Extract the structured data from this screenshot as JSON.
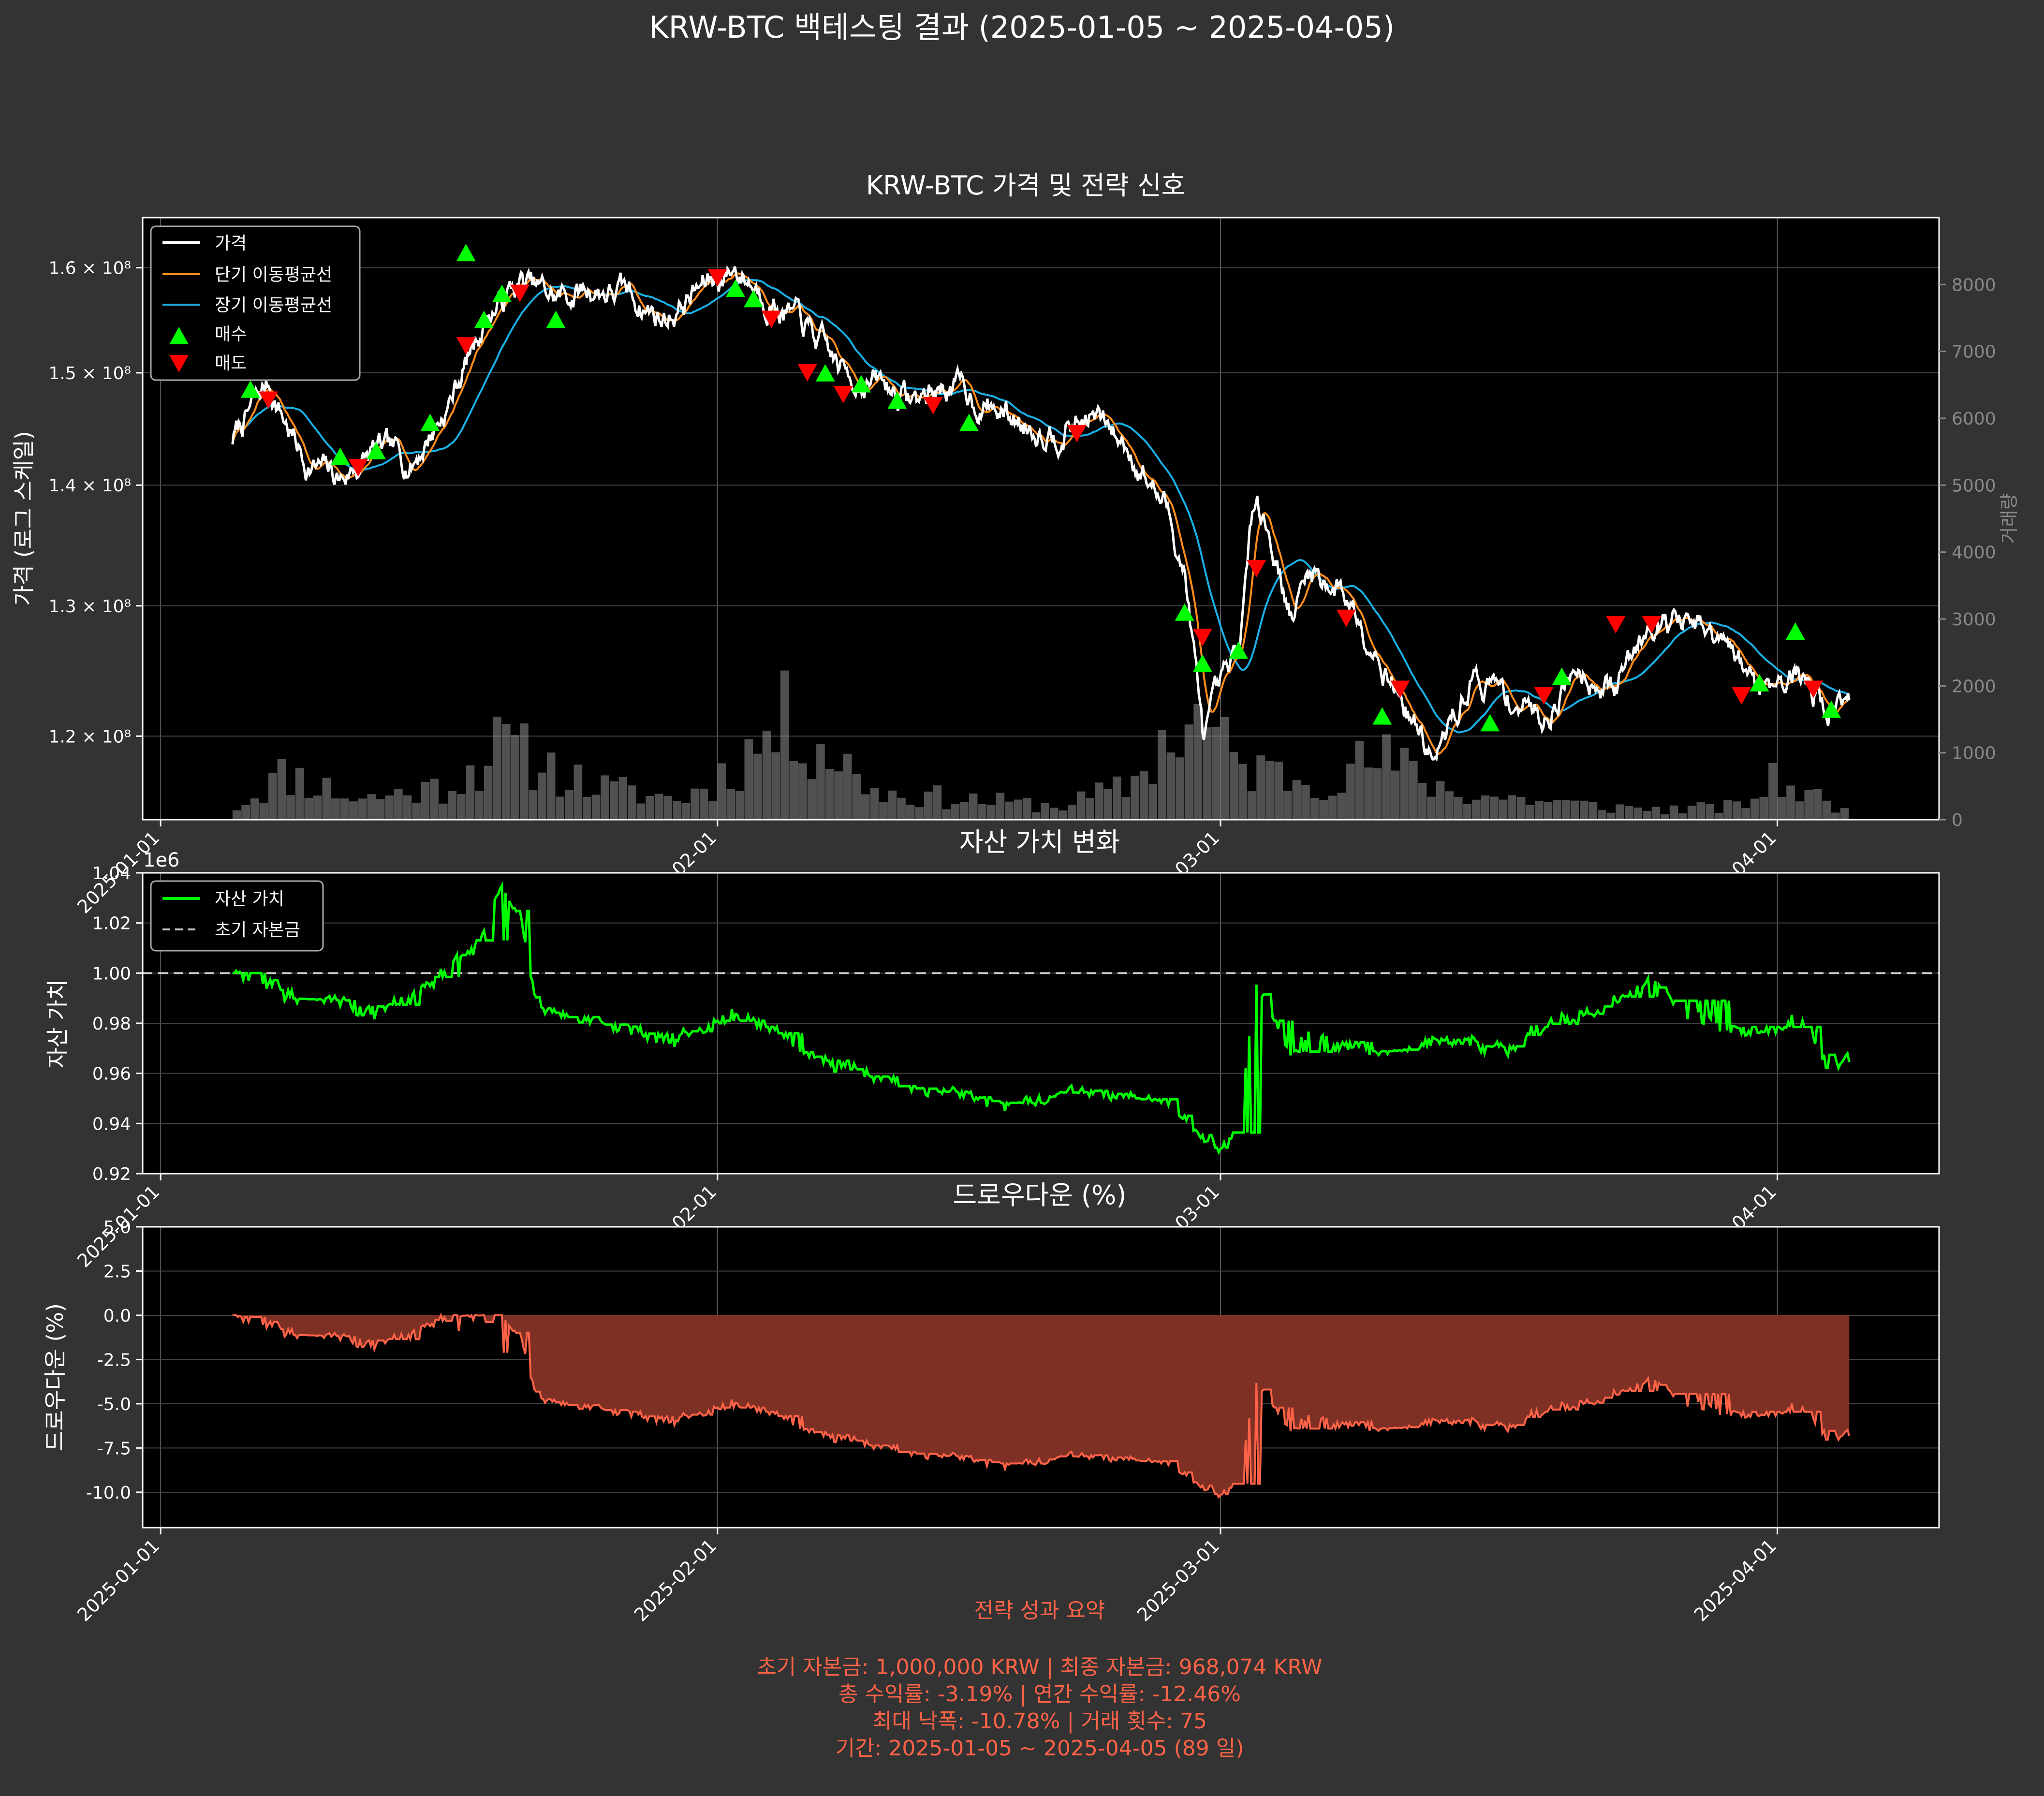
{
  "figure": {
    "suptitle": "KRW-BTC 백테스팅 결과 (2025-01-05 ~ 2025-04-05)",
    "background": "#333333",
    "axes_bg": "#000000"
  },
  "colors": {
    "price": "#ffffff",
    "sma": "#ff8c1a",
    "lma": "#1ab0e6",
    "buy": "#00ff00",
    "sell": "#ff0000",
    "equity": "#00ff00",
    "baseline": "#c8c8c8",
    "drawdown_line": "#ff6347",
    "drawdown_fill": "#7f3025",
    "volume": "#a0a0a0",
    "summary_text": "#ff6347"
  },
  "x_ticks": [
    "2025-01-01",
    "2025-02-01",
    "2025-03-01",
    "2025-04-01"
  ],
  "chart_data": [
    {
      "type": "line",
      "title": "KRW-BTC 가격 및 전략 신호",
      "ylabel": "가격 (로그 스케일)",
      "y2label": "거래량",
      "yscale": "log",
      "ylim": [
        114000000,
        165000000
      ],
      "y2lim": [
        0,
        9000
      ],
      "xlim": [
        "2024-12-31",
        "2025-04-10"
      ],
      "y_ticks": [
        "1.2 × 10⁸",
        "1.3 × 10⁸",
        "1.4 × 10⁸",
        "1.5 × 10⁸",
        "1.6 × 10⁸"
      ],
      "y_tick_values": [
        120000000,
        130000000,
        140000000,
        150000000,
        160000000
      ],
      "y2_ticks": [
        0,
        1000,
        2000,
        3000,
        4000,
        5000,
        6000,
        7000,
        8000
      ],
      "legend": [
        "가격",
        "단기 이동평균선",
        "장기 이동평균선",
        "매수",
        "매도"
      ],
      "legend_position": "top-left",
      "grid": true,
      "price_anchor_dates": [
        "2025-01-05",
        "2025-01-07",
        "2025-01-09",
        "2025-01-11",
        "2025-01-13",
        "2025-01-15",
        "2025-01-17",
        "2025-01-19",
        "2025-01-21",
        "2025-01-23",
        "2025-01-25",
        "2025-01-27",
        "2025-01-29",
        "2025-01-31",
        "2025-02-02",
        "2025-02-04",
        "2025-02-06",
        "2025-02-08",
        "2025-02-10",
        "2025-02-12",
        "2025-02-14",
        "2025-02-16",
        "2025-02-18",
        "2025-02-20",
        "2025-02-22",
        "2025-02-24",
        "2025-02-26",
        "2025-02-27",
        "2025-02-28",
        "2025-03-02",
        "2025-03-03",
        "2025-03-05",
        "2025-03-06",
        "2025-03-08",
        "2025-03-10",
        "2025-03-11",
        "2025-03-13",
        "2025-03-15",
        "2025-03-17",
        "2025-03-19",
        "2025-03-21",
        "2025-03-23",
        "2025-03-25",
        "2025-03-27",
        "2025-03-29",
        "2025-03-31",
        "2025-04-02",
        "2025-04-04",
        "2025-04-05"
      ],
      "price_anchor_values": [
        144000000,
        149000000,
        142000000,
        140500000,
        143000000,
        142000000,
        147000000,
        155000000,
        158500000,
        157000000,
        158000000,
        157500000,
        155000000,
        158000000,
        160000000,
        157000000,
        154000000,
        150000000,
        149000000,
        147500000,
        149000000,
        147000000,
        145500000,
        145000000,
        146000000,
        143000000,
        138000000,
        133000000,
        120000000,
        126000000,
        140000000,
        129000000,
        133000000,
        131000000,
        126000000,
        123000000,
        118000000,
        124500000,
        123000000,
        121500000,
        125500000,
        123500000,
        129500000,
        128500000,
        126500000,
        124000000,
        125000000,
        122000000,
        123500000
      ],
      "volume_anchor_dates": [
        "2025-01-05",
        "2025-01-08",
        "2025-01-12",
        "2025-01-17",
        "2025-01-20",
        "2025-01-25",
        "2025-01-30",
        "2025-02-01",
        "2025-02-05",
        "2025-02-10",
        "2025-02-15",
        "2025-02-20",
        "2025-02-24",
        "2025-02-26",
        "2025-02-28",
        "2025-03-02",
        "2025-03-06",
        "2025-03-10",
        "2025-03-14",
        "2025-03-18",
        "2025-03-22",
        "2025-03-26",
        "2025-03-30",
        "2025-04-01",
        "2025-04-05"
      ],
      "volume_anchor_values": [
        150,
        700,
        300,
        500,
        1100,
        500,
        300,
        600,
        1500,
        400,
        300,
        200,
        500,
        1200,
        1500,
        800,
        600,
        900,
        400,
        300,
        200,
        150,
        200,
        600,
        100
      ],
      "buy_signals": [
        [
          "2025-01-06",
          148500000
        ],
        [
          "2025-01-11",
          142500000
        ],
        [
          "2025-01-13",
          143000000
        ],
        [
          "2025-01-16",
          145500000
        ],
        [
          "2025-01-18",
          161500000
        ],
        [
          "2025-01-19",
          155000000
        ],
        [
          "2025-01-20",
          157500000
        ],
        [
          "2025-01-23",
          155000000
        ],
        [
          "2025-02-02",
          158000000
        ],
        [
          "2025-02-03",
          157000000
        ],
        [
          "2025-02-07",
          150000000
        ],
        [
          "2025-02-09",
          149000000
        ],
        [
          "2025-02-11",
          147500000
        ],
        [
          "2025-02-15",
          145500000
        ],
        [
          "2025-02-27",
          129500000
        ],
        [
          "2025-02-28",
          125500000
        ],
        [
          "2025-03-02",
          126500000
        ],
        [
          "2025-03-10",
          121500000
        ],
        [
          "2025-03-16",
          121000000
        ],
        [
          "2025-03-20",
          124500000
        ],
        [
          "2025-03-31",
          124000000
        ],
        [
          "2025-04-02",
          128000000
        ],
        [
          "2025-04-04",
          122000000
        ]
      ],
      "sell_signals": [
        [
          "2025-01-07",
          147500000
        ],
        [
          "2025-01-12",
          141500000
        ],
        [
          "2025-01-18",
          152500000
        ],
        [
          "2025-01-21",
          157500000
        ],
        [
          "2025-02-01",
          159000000
        ],
        [
          "2025-02-04",
          155000000
        ],
        [
          "2025-02-06",
          150000000
        ],
        [
          "2025-02-08",
          148000000
        ],
        [
          "2025-02-13",
          147000000
        ],
        [
          "2025-02-21",
          144500000
        ],
        [
          "2025-02-28",
          127500000
        ],
        [
          "2025-03-03",
          133000000
        ],
        [
          "2025-03-08",
          129000000
        ],
        [
          "2025-03-11",
          123500000
        ],
        [
          "2025-03-19",
          123000000
        ],
        [
          "2025-03-23",
          128500000
        ],
        [
          "2025-03-25",
          128500000
        ],
        [
          "2025-03-30",
          123000000
        ],
        [
          "2025-04-03",
          123500000
        ]
      ]
    },
    {
      "type": "line",
      "title": "자산 가치 변화",
      "ylabel": "자산 가치",
      "offset_label": "1e6",
      "ylim": [
        0.92,
        1.04
      ],
      "y_ticks": [
        "0.92",
        "0.94",
        "0.96",
        "0.98",
        "1.00",
        "1.02",
        "1.04"
      ],
      "y_tick_values": [
        0.92,
        0.94,
        0.96,
        0.98,
        1.0,
        1.02,
        1.04
      ],
      "xlim": [
        "2024-12-31",
        "2025-04-10"
      ],
      "legend": [
        "자산 가치",
        "초기 자본금"
      ],
      "legend_position": "top-left",
      "baseline": 1.0,
      "grid": true,
      "equity_anchor_dates": [
        "2025-01-05",
        "2025-01-07",
        "2025-01-08",
        "2025-01-11",
        "2025-01-13",
        "2025-01-15",
        "2025-01-17",
        "2025-01-19",
        "2025-01-20",
        "2025-01-21",
        "2025-01-22",
        "2025-01-24",
        "2025-01-27",
        "2025-01-29",
        "2025-01-31",
        "2025-02-02",
        "2025-02-04",
        "2025-02-06",
        "2025-02-09",
        "2025-02-11",
        "2025-02-14",
        "2025-02-17",
        "2025-02-19",
        "2025-02-21",
        "2025-02-26",
        "2025-02-28",
        "2025-03-01",
        "2025-03-02",
        "2025-03-03",
        "2025-03-05",
        "2025-03-06",
        "2025-03-10",
        "2025-03-13",
        "2025-03-17",
        "2025-03-19",
        "2025-03-22",
        "2025-03-25",
        "2025-03-27",
        "2025-03-30",
        "2025-04-01",
        "2025-04-02",
        "2025-04-04",
        "2025-04-05"
      ],
      "equity_anchor_values": [
        1.0,
        0.998,
        0.99,
        0.989,
        0.985,
        0.992,
        1.002,
        1.015,
        1.036,
        1.02,
        0.987,
        0.98,
        0.979,
        0.972,
        0.978,
        0.982,
        0.978,
        0.968,
        0.96,
        0.955,
        0.952,
        0.948,
        0.95,
        0.954,
        0.948,
        0.934,
        0.928,
        0.94,
        0.996,
        0.966,
        0.975,
        0.968,
        0.972,
        0.97,
        0.979,
        0.985,
        0.998,
        0.983,
        0.978,
        0.976,
        0.985,
        0.963,
        0.968
      ]
    },
    {
      "type": "area",
      "title": "드로우다운 (%)",
      "ylabel": "드로우다운 (%)",
      "ylim": [
        -12,
        5
      ],
      "y_ticks": [
        "-10.0",
        "-7.5",
        "-5.0",
        "-2.5",
        "0.0",
        "2.5",
        "5.0"
      ],
      "y_tick_values": [
        -10.0,
        -7.5,
        -5.0,
        -2.5,
        0.0,
        2.5,
        5.0
      ],
      "xlim": [
        "2024-12-31",
        "2025-04-10"
      ],
      "grid": true
    }
  ],
  "summary": {
    "title": "전략 성과 요약",
    "line1": "초기 자본금: 1,000,000 KRW | 최종 자본금: 968,074 KRW",
    "line2": "총 수익률: -3.19% | 연간 수익률: -12.46%",
    "line3": "최대 낙폭: -10.78% | 거래 횟수: 75",
    "line4": "기간: 2025-01-05 ~ 2025-04-05 (89 일)"
  }
}
